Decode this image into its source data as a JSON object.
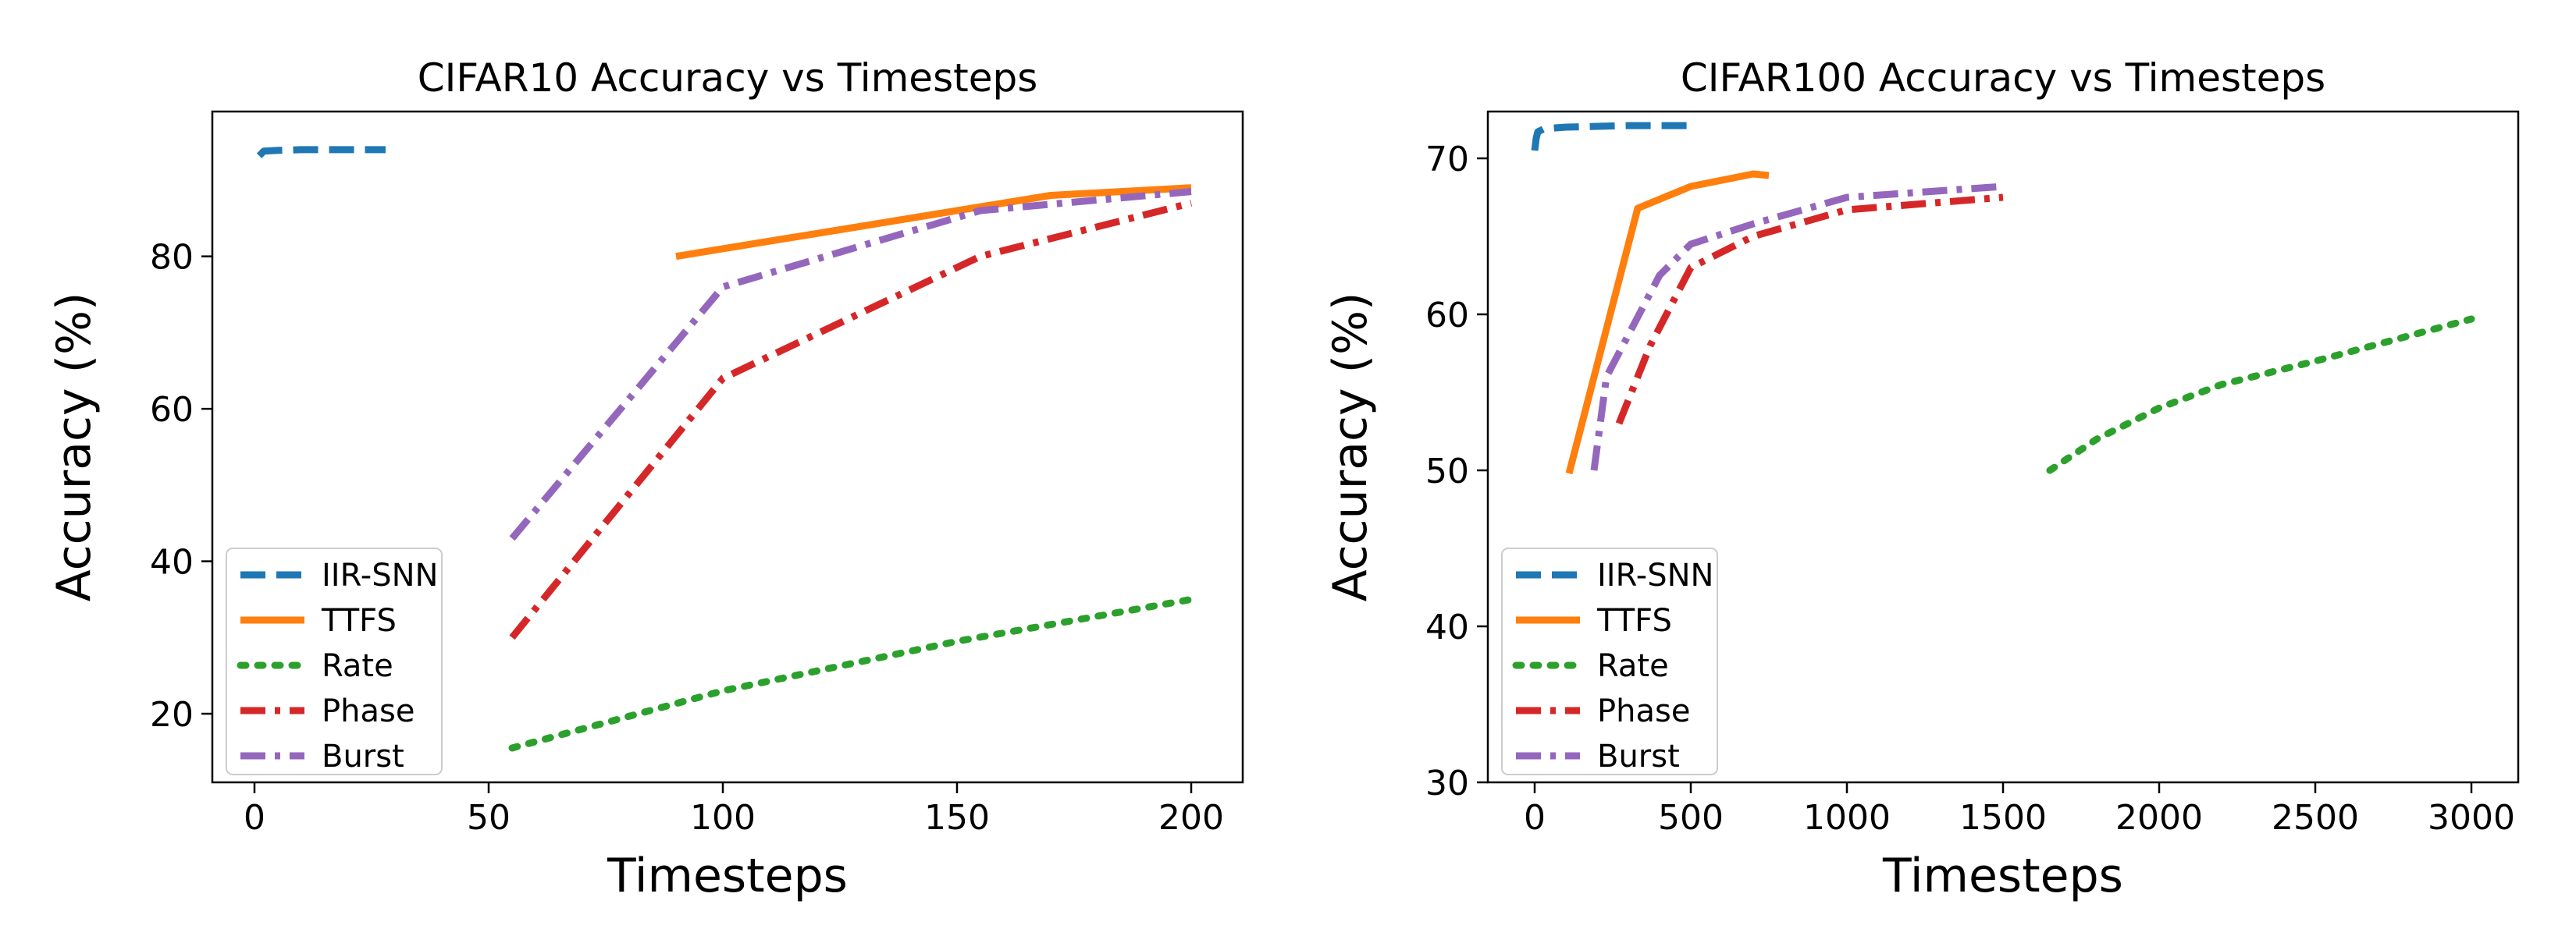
{
  "chart_data": [
    {
      "type": "line",
      "title": "CIFAR10 Accuracy vs Timesteps",
      "xlabel": "Timesteps",
      "ylabel": "Accuracy (%)",
      "xlim": [
        -9,
        211
      ],
      "ylim": [
        11,
        99
      ],
      "xticks": [
        0,
        50,
        100,
        150,
        200
      ],
      "yticks": [
        20,
        40,
        60,
        80
      ],
      "legend_position": "lower-left",
      "series": [
        {
          "name": "IIR-SNN",
          "style": "dashed",
          "color": "#1f77b4",
          "x": [
            1,
            2,
            5,
            10,
            20,
            28
          ],
          "y": [
            93.2,
            93.8,
            93.9,
            94.0,
            94.0,
            94.0
          ]
        },
        {
          "name": "TTFS",
          "style": "solid",
          "color": "#ff7f0e",
          "x": [
            90,
            170,
            200
          ],
          "y": [
            80,
            88,
            89
          ]
        },
        {
          "name": "Rate",
          "style": "dotted",
          "color": "#2ca02c",
          "x": [
            55,
            100,
            150,
            200
          ],
          "y": [
            15.5,
            23,
            29.5,
            35
          ]
        },
        {
          "name": "Phase",
          "style": "dashdot",
          "color": "#d62728",
          "x": [
            55,
            100,
            155,
            200
          ],
          "y": [
            30,
            64,
            80,
            87
          ]
        },
        {
          "name": "Burst",
          "style": "dashdot",
          "color": "#9467bd",
          "x": [
            55,
            100,
            155,
            200
          ],
          "y": [
            43,
            76,
            86,
            88.5
          ]
        }
      ]
    },
    {
      "type": "line",
      "title": "CIFAR100 Accuracy vs Timesteps",
      "xlabel": "Timesteps",
      "ylabel": "Accuracy (%)",
      "xlim": [
        -150,
        3150
      ],
      "ylim": [
        30,
        73
      ],
      "xticks": [
        0,
        500,
        1000,
        1500,
        2000,
        2500,
        3000
      ],
      "yticks": [
        30,
        40,
        50,
        60,
        70
      ],
      "legend_position": "lower-left",
      "series": [
        {
          "name": "IIR-SNN",
          "style": "dashed",
          "color": "#1f77b4",
          "x": [
            0,
            5,
            10,
            30,
            100,
            300,
            500
          ],
          "y": [
            70.5,
            71.3,
            71.7,
            71.9,
            72.0,
            72.1,
            72.1
          ]
        },
        {
          "name": "TTFS",
          "style": "solid",
          "color": "#ff7f0e",
          "x": [
            110,
            330,
            500,
            700,
            750
          ],
          "y": [
            49.8,
            66.8,
            68.2,
            69.0,
            68.9
          ]
        },
        {
          "name": "Rate",
          "style": "dotted",
          "color": "#2ca02c",
          "x": [
            1650,
            1800,
            2000,
            2200,
            2500,
            3000
          ],
          "y": [
            50.0,
            52.0,
            54.0,
            55.5,
            57.0,
            59.7
          ]
        },
        {
          "name": "Phase",
          "style": "dashdot",
          "color": "#d62728",
          "x": [
            270,
            370,
            500,
            700,
            1000,
            1500
          ],
          "y": [
            53.0,
            58.0,
            63.0,
            65.0,
            66.7,
            67.5
          ]
        },
        {
          "name": "Burst",
          "style": "dashdot",
          "color": "#9467bd",
          "x": [
            190,
            230,
            400,
            500,
            700,
            1000,
            1500
          ],
          "y": [
            50.0,
            56.0,
            62.5,
            64.5,
            65.8,
            67.5,
            68.2
          ]
        }
      ]
    }
  ]
}
